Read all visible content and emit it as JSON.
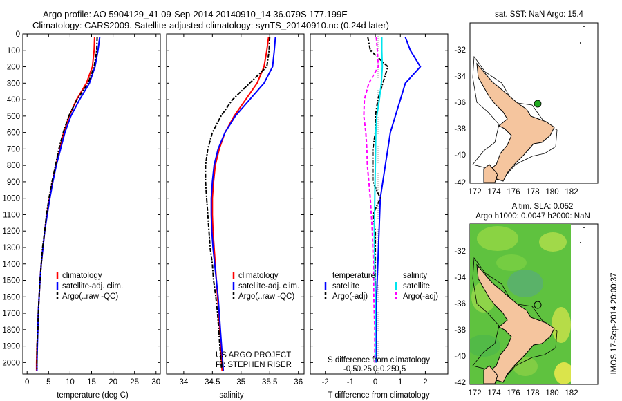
{
  "header": {
    "title_line1": "Argo profile: AO 5904129_41 09-Sep-2014 20140910_14 36.079S 177.199E",
    "title_line2": "Climatology: CARS2009. Satellite-adjusted climatology: synTS_20140910.nc (0.24d later)"
  },
  "depth_axis": {
    "ylim": [
      0,
      2070
    ],
    "ticks": [
      0,
      100,
      200,
      300,
      400,
      500,
      600,
      700,
      800,
      900,
      1000,
      1100,
      1200,
      1300,
      1400,
      1500,
      1600,
      1700,
      1800,
      1900,
      2000
    ]
  },
  "colors": {
    "climatology": "#ff0000",
    "satellite": "#0000ff",
    "argo": "#000000",
    "sat_salinity": "#00e5ee",
    "argo_salinity": "#ff00ff"
  },
  "chart_data": [
    {
      "type": "line",
      "panel": "temperature",
      "xlabel": "temperature (deg C)",
      "xlim": [
        -1,
        31
      ],
      "xticks": [
        0,
        5,
        10,
        15,
        20,
        25,
        30
      ],
      "legend": {
        "placement": "lower-center",
        "entries": [
          "climatology",
          "satellite-adj. clim.",
          "Argo(..raw -QC)"
        ]
      },
      "series": [
        {
          "name": "climatology",
          "color": "#ff0000",
          "style": "solid",
          "points": [
            [
              15.7,
              20
            ],
            [
              15.6,
              100
            ],
            [
              15.2,
              200
            ],
            [
              13.8,
              300
            ],
            [
              11.5,
              400
            ],
            [
              9.8,
              500
            ],
            [
              8.5,
              600
            ],
            [
              7.6,
              700
            ],
            [
              6.7,
              800
            ],
            [
              5.9,
              900
            ],
            [
              5.2,
              1000
            ],
            [
              4.6,
              1100
            ],
            [
              4.1,
              1200
            ],
            [
              3.7,
              1300
            ],
            [
              3.3,
              1400
            ],
            [
              3.0,
              1500
            ],
            [
              2.8,
              1600
            ],
            [
              2.6,
              1700
            ],
            [
              2.5,
              1800
            ],
            [
              2.3,
              1900
            ],
            [
              2.2,
              2000
            ],
            [
              2.2,
              2050
            ]
          ]
        },
        {
          "name": "satellite-adj. clim.",
          "color": "#0000ff",
          "style": "solid",
          "points": [
            [
              16.9,
              20
            ],
            [
              16.5,
              100
            ],
            [
              15.8,
              200
            ],
            [
              14.5,
              300
            ],
            [
              12.2,
              400
            ],
            [
              10.2,
              500
            ],
            [
              8.8,
              600
            ],
            [
              7.8,
              700
            ],
            [
              6.8,
              800
            ],
            [
              6.0,
              900
            ],
            [
              5.3,
              1000
            ],
            [
              4.7,
              1100
            ],
            [
              4.1,
              1200
            ],
            [
              3.7,
              1300
            ],
            [
              3.3,
              1400
            ],
            [
              3.0,
              1500
            ],
            [
              2.8,
              1600
            ],
            [
              2.6,
              1700
            ],
            [
              2.5,
              1800
            ],
            [
              2.4,
              1900
            ],
            [
              2.3,
              2000
            ],
            [
              2.3,
              2050
            ]
          ]
        },
        {
          "name": "Argo(..raw -QC)",
          "color": "#000000",
          "style": "dashdot",
          "points": [
            [
              16.3,
              20
            ],
            [
              16.2,
              100
            ],
            [
              15.6,
              200
            ],
            [
              14.2,
              300
            ],
            [
              11.6,
              400
            ],
            [
              9.7,
              500
            ],
            [
              8.4,
              600
            ],
            [
              7.4,
              700
            ],
            [
              6.6,
              800
            ],
            [
              5.8,
              900
            ],
            [
              5.1,
              1000
            ],
            [
              4.5,
              1100
            ],
            [
              4.1,
              1200
            ],
            [
              3.6,
              1300
            ],
            [
              3.3,
              1400
            ],
            [
              3.0,
              1500
            ],
            [
              2.8,
              1600
            ],
            [
              2.6,
              1700
            ],
            [
              2.5,
              1800
            ],
            [
              2.3,
              1900
            ],
            [
              2.3,
              2000
            ],
            [
              2.3,
              2040
            ]
          ]
        }
      ]
    },
    {
      "type": "line",
      "panel": "salinity",
      "xlabel": "salinity",
      "xlim": [
        33.7,
        36.1
      ],
      "xticks": [
        34,
        34.5,
        35,
        35.5,
        36
      ],
      "legend": {
        "placement": "lower-center",
        "entries": [
          "climatology",
          "satellite-adj. clim.",
          "Argo(..raw -QC)"
        ]
      },
      "annotation": [
        "US ARGO PROJECT",
        "PI: STEPHEN RISER"
      ],
      "series": [
        {
          "name": "climatology",
          "color": "#ff0000",
          "style": "solid",
          "points": [
            [
              35.48,
              20
            ],
            [
              35.45,
              100
            ],
            [
              35.4,
              200
            ],
            [
              35.28,
              300
            ],
            [
              35.08,
              400
            ],
            [
              34.88,
              500
            ],
            [
              34.72,
              600
            ],
            [
              34.62,
              700
            ],
            [
              34.55,
              800
            ],
            [
              34.52,
              900
            ],
            [
              34.5,
              1000
            ],
            [
              34.5,
              1100
            ],
            [
              34.51,
              1200
            ],
            [
              34.53,
              1300
            ],
            [
              34.55,
              1400
            ],
            [
              34.57,
              1500
            ],
            [
              34.59,
              1600
            ],
            [
              34.61,
              1700
            ],
            [
              34.63,
              1800
            ],
            [
              34.65,
              1900
            ],
            [
              34.66,
              2000
            ],
            [
              34.67,
              2050
            ]
          ]
        },
        {
          "name": "satellite-adj. clim.",
          "color": "#0000ff",
          "style": "solid",
          "points": [
            [
              35.6,
              20
            ],
            [
              35.58,
              100
            ],
            [
              35.55,
              200
            ],
            [
              35.4,
              300
            ],
            [
              35.15,
              400
            ],
            [
              34.9,
              500
            ],
            [
              34.72,
              600
            ],
            [
              34.6,
              700
            ],
            [
              34.53,
              800
            ],
            [
              34.5,
              900
            ],
            [
              34.48,
              1000
            ],
            [
              34.48,
              1100
            ],
            [
              34.49,
              1200
            ],
            [
              34.51,
              1300
            ],
            [
              34.54,
              1400
            ],
            [
              34.57,
              1500
            ],
            [
              34.6,
              1600
            ],
            [
              34.62,
              1700
            ],
            [
              34.64,
              1800
            ],
            [
              34.66,
              1900
            ],
            [
              34.68,
              2000
            ],
            [
              34.69,
              2050
            ]
          ]
        },
        {
          "name": "Argo(..raw -QC)",
          "color": "#000000",
          "style": "dashdot",
          "points": [
            [
              35.5,
              20
            ],
            [
              35.49,
              100
            ],
            [
              35.45,
              200
            ],
            [
              35.15,
              300
            ],
            [
              34.85,
              400
            ],
            [
              34.65,
              500
            ],
            [
              34.5,
              600
            ],
            [
              34.42,
              700
            ],
            [
              34.38,
              800
            ],
            [
              34.38,
              900
            ],
            [
              34.4,
              1000
            ],
            [
              34.42,
              1100
            ],
            [
              34.44,
              1200
            ],
            [
              34.46,
              1300
            ],
            [
              34.5,
              1400
            ],
            [
              34.52,
              1500
            ],
            [
              34.56,
              1600
            ],
            [
              34.59,
              1700
            ],
            [
              34.61,
              1800
            ],
            [
              34.63,
              1900
            ],
            [
              34.65,
              2000
            ],
            [
              34.66,
              2040
            ]
          ]
        }
      ]
    },
    {
      "type": "line",
      "panel": "difference",
      "xlabel": "T difference from climatology",
      "xlim": [
        -2.6,
        2.9
      ],
      "xticks": [
        -2,
        -1,
        0,
        1,
        2
      ],
      "top_xlabel": "S difference from climatology",
      "top_xticks": [
        -0.5,
        -0.25,
        0,
        0.25,
        0.5
      ],
      "legend": {
        "placement": "lower-center",
        "headers": [
          "temperature",
          "salinity"
        ],
        "entries": [
          "satellite",
          "Argo(-adj)",
          "satellite",
          "Argo(-adj)"
        ]
      },
      "series": [
        {
          "name": "satellite",
          "group": "temperature",
          "color": "#0000ff",
          "style": "solid",
          "points": [
            [
              1.2,
              20
            ],
            [
              1.4,
              100
            ],
            [
              1.8,
              200
            ],
            [
              1.2,
              300
            ],
            [
              1.0,
              400
            ],
            [
              0.8,
              500
            ],
            [
              0.6,
              600
            ],
            [
              0.5,
              700
            ],
            [
              0.4,
              800
            ],
            [
              0.3,
              900
            ],
            [
              0.2,
              1000
            ],
            [
              0.15,
              1200
            ],
            [
              0.1,
              1400
            ],
            [
              0.05,
              1600
            ],
            [
              0.05,
              1800
            ],
            [
              0.05,
              2000
            ]
          ]
        },
        {
          "name": "Argo(-adj)",
          "group": "temperature",
          "color": "#000000",
          "style": "dashdot",
          "points": [
            [
              -0.3,
              20
            ],
            [
              -0.2,
              100
            ],
            [
              0.5,
              200
            ],
            [
              0.3,
              300
            ],
            [
              0.1,
              400
            ],
            [
              0.0,
              500
            ],
            [
              0.0,
              600
            ],
            [
              -0.1,
              700
            ],
            [
              -0.1,
              800
            ],
            [
              -0.1,
              900
            ],
            [
              0.2,
              1000
            ],
            [
              -0.1,
              1100
            ],
            [
              0.0,
              1200
            ],
            [
              0.0,
              1400
            ],
            [
              0.0,
              1600
            ],
            [
              0.0,
              1800
            ],
            [
              0.0,
              2000
            ]
          ]
        },
        {
          "name": "satellite",
          "group": "salinity",
          "color": "#00e5ee",
          "style": "solid",
          "points": [
            [
              0.13,
              20
            ],
            [
              0.13,
              100
            ],
            [
              0.14,
              200
            ],
            [
              0.12,
              300
            ],
            [
              0.08,
              400
            ],
            [
              0.03,
              500
            ],
            [
              0.01,
              600
            ],
            [
              0.0,
              800
            ],
            [
              -0.01,
              1000
            ],
            [
              -0.02,
              1200
            ],
            [
              -0.01,
              1400
            ],
            [
              0.0,
              1600
            ],
            [
              0.0,
              1800
            ],
            [
              0.0,
              2000
            ]
          ]
        },
        {
          "name": "Argo(-adj)",
          "group": "salinity",
          "color": "#ff00ff",
          "style": "dashed",
          "points": [
            [
              0.02,
              20
            ],
            [
              0.04,
              100
            ],
            [
              0.06,
              200
            ],
            [
              -0.13,
              300
            ],
            [
              -0.22,
              400
            ],
            [
              -0.23,
              500
            ],
            [
              -0.19,
              600
            ],
            [
              -0.17,
              700
            ],
            [
              -0.16,
              800
            ],
            [
              -0.13,
              900
            ],
            [
              -0.1,
              1000
            ],
            [
              -0.08,
              1100
            ],
            [
              -0.06,
              1200
            ],
            [
              -0.04,
              1400
            ],
            [
              -0.03,
              1600
            ],
            [
              -0.01,
              1800
            ],
            [
              -0.01,
              2000
            ]
          ]
        }
      ]
    }
  ],
  "map_top": {
    "title": "sat. SST: NaN Argo: 15.4",
    "xticks": [
      "172",
      "174",
      "176",
      "178",
      "180",
      "182"
    ],
    "yticks": [
      "-32",
      "-34",
      "-36",
      "-38",
      "-40",
      "-42"
    ],
    "xlim": [
      170.7,
      183.7
    ],
    "ylim": [
      -42,
      -30.5
    ],
    "marker": {
      "lon": 177.2,
      "lat": -36.08,
      "color": "#22aa22"
    }
  },
  "map_bottom": {
    "title_line1": "Altim. SLA: 0.052",
    "title_line2": "Argo h1000: 0.0047 h2000: NaN",
    "xticks": [
      "172",
      "174",
      "176",
      "178",
      "180",
      "182"
    ],
    "yticks": [
      "-32",
      "-34",
      "-36",
      "-38",
      "-40",
      "-42"
    ],
    "xlim": [
      170.7,
      183.7
    ],
    "ylim": [
      -42,
      -30.5
    ],
    "marker": {
      "lon": 177.2,
      "lat": -36.08
    }
  },
  "footer_stamp": "IMOS 17-Sep-2014 20:00:37"
}
